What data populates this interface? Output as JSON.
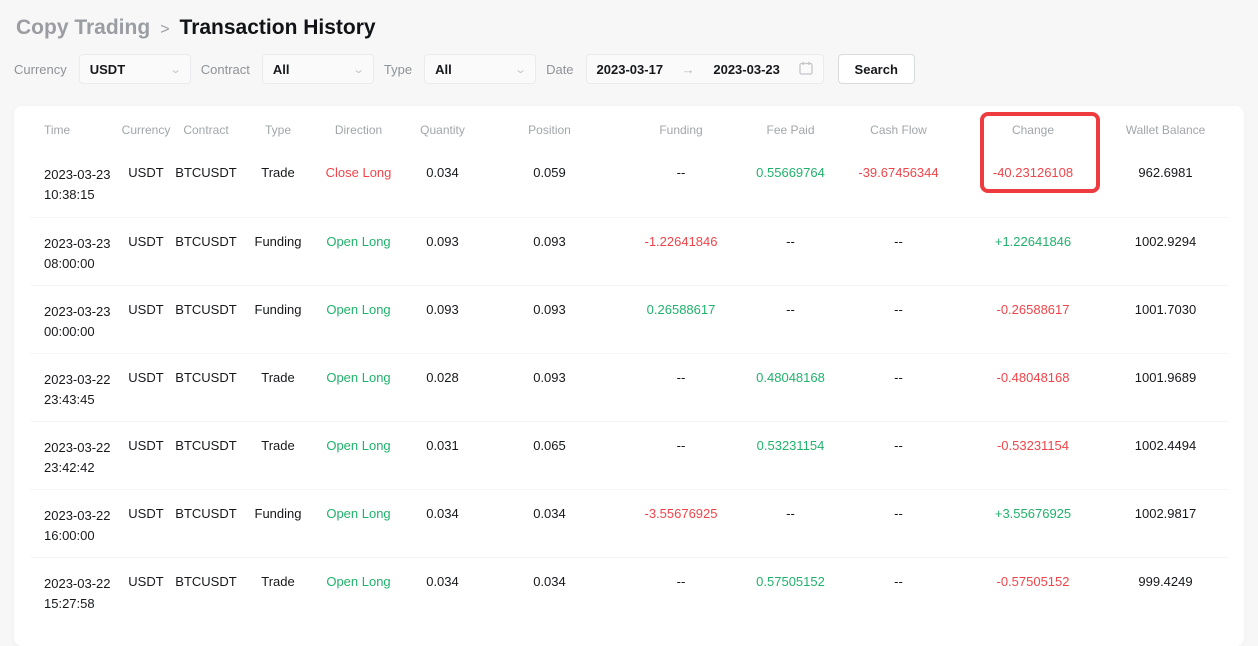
{
  "colors": {
    "green": "#20b26c",
    "red": "#ef454a",
    "highlight": "#ee3b3f"
  },
  "breadcrumb": {
    "parent": "Copy Trading",
    "separator": ">",
    "current": "Transaction History"
  },
  "filters": {
    "currency": {
      "label": "Currency",
      "value": "USDT"
    },
    "contract": {
      "label": "Contract",
      "value": "All"
    },
    "type": {
      "label": "Type",
      "value": "All"
    },
    "date": {
      "label": "Date",
      "start": "2023-03-17",
      "arrow": "→",
      "end": "2023-03-23"
    },
    "search_label": "Search"
  },
  "table": {
    "columns": [
      "Time",
      "Currency",
      "Contract",
      "Type",
      "Direction",
      "Quantity",
      "Position",
      "Funding",
      "Fee Paid",
      "Cash Flow",
      "Change",
      "Wallet Balance"
    ],
    "rows": [
      {
        "date": "2023-03-23",
        "time": "10:38:15",
        "currency": "USDT",
        "contract": "BTCUSDT",
        "type": "Trade",
        "direction": {
          "text": "Close Long",
          "color": "red"
        },
        "quantity": "0.034",
        "position": "0.059",
        "funding": {
          "text": "--",
          "color": "dark"
        },
        "fee_paid": {
          "text": "0.55669764",
          "color": "green"
        },
        "cash_flow": {
          "text": "-39.67456344",
          "color": "red"
        },
        "change": {
          "text": "-40.23126108",
          "color": "red"
        },
        "wallet_balance": "962.6981"
      },
      {
        "date": "2023-03-23",
        "time": "08:00:00",
        "currency": "USDT",
        "contract": "BTCUSDT",
        "type": "Funding",
        "direction": {
          "text": "Open Long",
          "color": "green"
        },
        "quantity": "0.093",
        "position": "0.093",
        "funding": {
          "text": "-1.22641846",
          "color": "red"
        },
        "fee_paid": {
          "text": "--",
          "color": "dark"
        },
        "cash_flow": {
          "text": "--",
          "color": "dark"
        },
        "change": {
          "text": "+1.22641846",
          "color": "green"
        },
        "wallet_balance": "1002.9294"
      },
      {
        "date": "2023-03-23",
        "time": "00:00:00",
        "currency": "USDT",
        "contract": "BTCUSDT",
        "type": "Funding",
        "direction": {
          "text": "Open Long",
          "color": "green"
        },
        "quantity": "0.093",
        "position": "0.093",
        "funding": {
          "text": "0.26588617",
          "color": "green"
        },
        "fee_paid": {
          "text": "--",
          "color": "dark"
        },
        "cash_flow": {
          "text": "--",
          "color": "dark"
        },
        "change": {
          "text": "-0.26588617",
          "color": "red"
        },
        "wallet_balance": "1001.7030"
      },
      {
        "date": "2023-03-22",
        "time": "23:43:45",
        "currency": "USDT",
        "contract": "BTCUSDT",
        "type": "Trade",
        "direction": {
          "text": "Open Long",
          "color": "green"
        },
        "quantity": "0.028",
        "position": "0.093",
        "funding": {
          "text": "--",
          "color": "dark"
        },
        "fee_paid": {
          "text": "0.48048168",
          "color": "green"
        },
        "cash_flow": {
          "text": "--",
          "color": "dark"
        },
        "change": {
          "text": "-0.48048168",
          "color": "red"
        },
        "wallet_balance": "1001.9689"
      },
      {
        "date": "2023-03-22",
        "time": "23:42:42",
        "currency": "USDT",
        "contract": "BTCUSDT",
        "type": "Trade",
        "direction": {
          "text": "Open Long",
          "color": "green"
        },
        "quantity": "0.031",
        "position": "0.065",
        "funding": {
          "text": "--",
          "color": "dark"
        },
        "fee_paid": {
          "text": "0.53231154",
          "color": "green"
        },
        "cash_flow": {
          "text": "--",
          "color": "dark"
        },
        "change": {
          "text": "-0.53231154",
          "color": "red"
        },
        "wallet_balance": "1002.4494"
      },
      {
        "date": "2023-03-22",
        "time": "16:00:00",
        "currency": "USDT",
        "contract": "BTCUSDT",
        "type": "Funding",
        "direction": {
          "text": "Open Long",
          "color": "green"
        },
        "quantity": "0.034",
        "position": "0.034",
        "funding": {
          "text": "-3.55676925",
          "color": "red"
        },
        "fee_paid": {
          "text": "--",
          "color": "dark"
        },
        "cash_flow": {
          "text": "--",
          "color": "dark"
        },
        "change": {
          "text": "+3.55676925",
          "color": "green"
        },
        "wallet_balance": "1002.9817"
      },
      {
        "date": "2023-03-22",
        "time": "15:27:58",
        "currency": "USDT",
        "contract": "BTCUSDT",
        "type": "Trade",
        "direction": {
          "text": "Open Long",
          "color": "green"
        },
        "quantity": "0.034",
        "position": "0.034",
        "funding": {
          "text": "--",
          "color": "dark"
        },
        "fee_paid": {
          "text": "0.57505152",
          "color": "green"
        },
        "cash_flow": {
          "text": "--",
          "color": "dark"
        },
        "change": {
          "text": "-0.57505152",
          "color": "red"
        },
        "wallet_balance": "999.4249"
      }
    ]
  }
}
